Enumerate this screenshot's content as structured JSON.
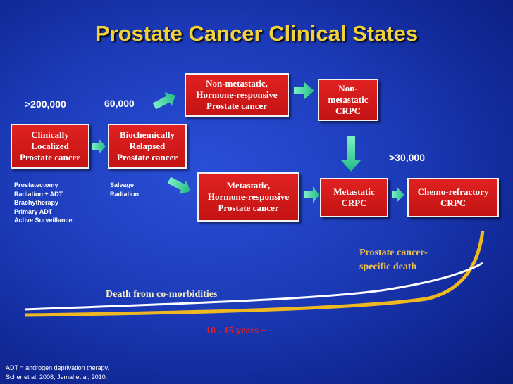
{
  "title": "Prostate Cancer Clinical States",
  "counts": {
    "localized": ">200,000",
    "relapsed": "60,000",
    "chemo_refractory": ">30,000"
  },
  "states": {
    "localized": [
      "Clinically",
      "Localized",
      "Prostate cancer"
    ],
    "relapsed": [
      "Biochemically",
      "Relapsed",
      "Prostate cancer"
    ],
    "nonmet_hormone": [
      "Non-metastatic,",
      "Hormone-responsive",
      "Prostate cancer"
    ],
    "nonmet_crpc": [
      "Non-",
      "metastatic",
      "CRPC"
    ],
    "met_hormone": [
      "Metastatic,",
      "Hormone-responsive",
      "Prostate cancer"
    ],
    "met_crpc": [
      "Metastatic",
      "CRPC"
    ],
    "chemo_refractory": [
      "Chemo-refractory",
      "CRPC"
    ]
  },
  "treatments": {
    "localized": [
      "Prostatectomy",
      "Radiation ± ADT",
      "Brachytherapy",
      "Primary ADT",
      "Active Surveillance"
    ],
    "relapsed": [
      "Salvage",
      "Radiation"
    ]
  },
  "outcomes": {
    "comorbidities": "Death from co-morbidities",
    "cancer_specific": [
      "Prostate cancer-",
      "specific death"
    ],
    "timeline": "10 - 15 years +"
  },
  "footnote": [
    "ADT = androgen deprivation therapy.",
    "Scher et al, 2008; Jemal et al, 2010."
  ],
  "colors": {
    "title": "#f2d23a",
    "box": "#d41a1a",
    "arrow": "#3fd9a3",
    "comorbidity_curve": "#ffffff",
    "cancer_curve": "#f0b820",
    "timeline_text": "#e22222"
  }
}
